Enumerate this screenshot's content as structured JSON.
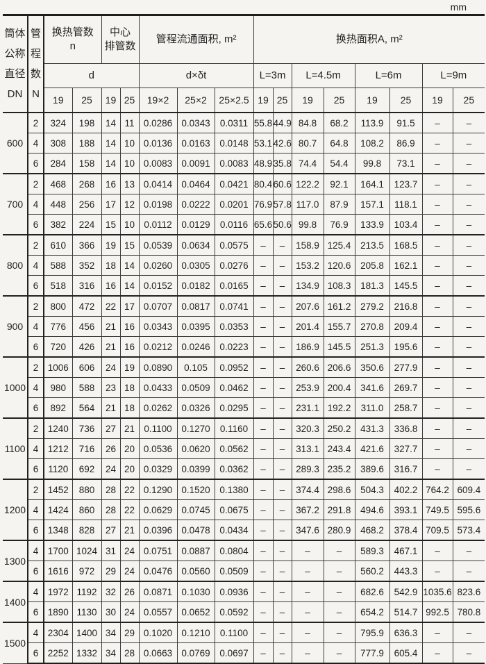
{
  "unit_label": "mm",
  "colors": {
    "paper": "#f5f4f0",
    "ink": "#222222",
    "grid_line": "#3b3b3b",
    "heavy_line": "#1d1d1d"
  },
  "header": {
    "dn": "筒体\n公称\n直径\nDN",
    "n": "管\n程\n数\nN",
    "tube_count": "换热管数\nn",
    "center_rows": "中心\n排管数",
    "flow_area": "管程流通面积, m²",
    "heat_area": "换热面积A, m²",
    "d_label": "d",
    "dxdt_label": "d×δt",
    "lengths": [
      "L=3m",
      "L=4.5m",
      "L=6m",
      "L=9m"
    ],
    "sub_cols": [
      "19",
      "25",
      "19",
      "25",
      "19×2",
      "25×2",
      "25×2.5",
      "19",
      "25",
      "19",
      "25",
      "19",
      "25",
      "19",
      "25"
    ]
  },
  "body": {
    "groups": [
      {
        "dn": "600",
        "rows": [
          {
            "n": "2",
            "cells": [
              "324",
              "198",
              "14",
              "11",
              "0.0286",
              "0.0343",
              "0.0311",
              "55.8",
              "44.9",
              "84.8",
              "68.2",
              "113.9",
              "91.5",
              "–",
              "–"
            ]
          },
          {
            "n": "4",
            "cells": [
              "308",
              "188",
              "14",
              "10",
              "0.0136",
              "0.0163",
              "0.0148",
              "53.1",
              "42.6",
              "80.7",
              "64.8",
              "108.2",
              "86.9",
              "–",
              "–"
            ]
          },
          {
            "n": "6",
            "cells": [
              "284",
              "158",
              "14",
              "10",
              "0.0083",
              "0.0091",
              "0.0083",
              "48.9",
              "35.8",
              "74.4",
              "54.4",
              "99.8",
              "73.1",
              "–",
              "–"
            ]
          }
        ]
      },
      {
        "dn": "700",
        "rows": [
          {
            "n": "2",
            "cells": [
              "468",
              "268",
              "16",
              "13",
              "0.0414",
              "0.0464",
              "0.0421",
              "80.4",
              "60.6",
              "122.2",
              "92.1",
              "164.1",
              "123.7",
              "–",
              "–"
            ]
          },
          {
            "n": "4",
            "cells": [
              "448",
              "256",
              "17",
              "12",
              "0.0198",
              "0.0222",
              "0.0201",
              "76.9",
              "57.8",
              "117.0",
              "87.9",
              "157.1",
              "118.1",
              "–",
              "–"
            ]
          },
          {
            "n": "6",
            "cells": [
              "382",
              "224",
              "15",
              "10",
              "0.0112",
              "0.0129",
              "0.0116",
              "65.6",
              "50.6",
              "99.8",
              "76.9",
              "133.9",
              "103.4",
              "–",
              "–"
            ]
          }
        ]
      },
      {
        "dn": "800",
        "rows": [
          {
            "n": "2",
            "cells": [
              "610",
              "366",
              "19",
              "15",
              "0.0539",
              "0.0634",
              "0.0575",
              "–",
              "–",
              "158.9",
              "125.4",
              "213.5",
              "168.5",
              "–",
              "–"
            ]
          },
          {
            "n": "4",
            "cells": [
              "588",
              "352",
              "18",
              "14",
              "0.0260",
              "0.0305",
              "0.0276",
              "–",
              "–",
              "153.2",
              "120.6",
              "205.8",
              "162.1",
              "–",
              "–"
            ]
          },
          {
            "n": "6",
            "cells": [
              "518",
              "316",
              "16",
              "14",
              "0.0152",
              "0.0182",
              "0.0165",
              "–",
              "–",
              "134.9",
              "108.3",
              "181.3",
              "145.5",
              "–",
              "–"
            ]
          }
        ]
      },
      {
        "dn": "900",
        "rows": [
          {
            "n": "2",
            "cells": [
              "800",
              "472",
              "22",
              "17",
              "0.0707",
              "0.0817",
              "0.0741",
              "–",
              "–",
              "207.6",
              "161.2",
              "279.2",
              "216.8",
              "–",
              "–"
            ]
          },
          {
            "n": "4",
            "cells": [
              "776",
              "456",
              "21",
              "16",
              "0.0343",
              "0.0395",
              "0.0353",
              "–",
              "–",
              "201.4",
              "155.7",
              "270.8",
              "209.4",
              "–",
              "–"
            ]
          },
          {
            "n": "6",
            "cells": [
              "720",
              "426",
              "21",
              "16",
              "0.0212",
              "0.0246",
              "0.0223",
              "–",
              "–",
              "186.9",
              "145.5",
              "251.3",
              "195.6",
              "–",
              "–"
            ]
          }
        ]
      },
      {
        "dn": "1000",
        "rows": [
          {
            "n": "2",
            "cells": [
              "1006",
              "606",
              "24",
              "19",
              "0.0890",
              "0.105",
              "0.0952",
              "–",
              "–",
              "260.6",
              "206.6",
              "350.6",
              "277.9",
              "–",
              "–"
            ]
          },
          {
            "n": "4",
            "cells": [
              "980",
              "588",
              "23",
              "18",
              "0.0433",
              "0.0509",
              "0.0462",
              "–",
              "–",
              "253.9",
              "200.4",
              "341.6",
              "269.7",
              "–",
              "–"
            ]
          },
          {
            "n": "6",
            "cells": [
              "892",
              "564",
              "21",
              "18",
              "0.0262",
              "0.0326",
              "0.0295",
              "–",
              "–",
              "231.1",
              "192.2",
              "311.0",
              "258.7",
              "–",
              "–"
            ]
          }
        ]
      },
      {
        "dn": "1100",
        "rows": [
          {
            "n": "2",
            "cells": [
              "1240",
              "736",
              "27",
              "21",
              "0.1100",
              "0.1270",
              "0.1160",
              "–",
              "–",
              "320.3",
              "250.2",
              "431.3",
              "336.8",
              "–",
              "–"
            ]
          },
          {
            "n": "4",
            "cells": [
              "1212",
              "716",
              "26",
              "20",
              "0.0536",
              "0.0620",
              "0.0562",
              "–",
              "–",
              "313.1",
              "243.4",
              "421.6",
              "327.7",
              "–",
              "–"
            ]
          },
          {
            "n": "6",
            "cells": [
              "1120",
              "692",
              "24",
              "20",
              "0.0329",
              "0.0399",
              "0.0362",
              "–",
              "–",
              "289.3",
              "235.2",
              "389.6",
              "316.7",
              "–",
              "–"
            ]
          }
        ]
      },
      {
        "dn": "1200",
        "rows": [
          {
            "n": "2",
            "cells": [
              "1452",
              "880",
              "28",
              "22",
              "0.1290",
              "0.1520",
              "0.1380",
              "–",
              "–",
              "374.4",
              "298.6",
              "504.3",
              "402.2",
              "764.2",
              "609.4"
            ]
          },
          {
            "n": "4",
            "cells": [
              "1424",
              "860",
              "28",
              "22",
              "0.0629",
              "0.0745",
              "0.0675",
              "–",
              "–",
              "367.2",
              "291.8",
              "494.6",
              "393.1",
              "749.5",
              "595.6"
            ]
          },
          {
            "n": "6",
            "cells": [
              "1348",
              "828",
              "27",
              "21",
              "0.0396",
              "0.0478",
              "0.0434",
              "–",
              "–",
              "347.6",
              "280.9",
              "468.2",
              "378.4",
              "709.5",
              "573.4"
            ]
          }
        ]
      },
      {
        "dn": "1300",
        "rows": [
          {
            "n": "4",
            "cells": [
              "1700",
              "1024",
              "31",
              "24",
              "0.0751",
              "0.0887",
              "0.0804",
              "–",
              "–",
              "–",
              "–",
              "589.3",
              "467.1",
              "–",
              "–"
            ]
          },
          {
            "n": "6",
            "cells": [
              "1616",
              "972",
              "29",
              "24",
              "0.0476",
              "0.0560",
              "0.0509",
              "–",
              "–",
              "–",
              "–",
              "560.2",
              "443.3",
              "–",
              "–"
            ]
          }
        ]
      },
      {
        "dn": "1400",
        "rows": [
          {
            "n": "4",
            "cells": [
              "1972",
              "1192",
              "32",
              "26",
              "0.0871",
              "0.1030",
              "0.0936",
              "–",
              "–",
              "–",
              "–",
              "682.6",
              "542.9",
              "1035.6",
              "823.6"
            ]
          },
          {
            "n": "6",
            "cells": [
              "1890",
              "1130",
              "30",
              "24",
              "0.0557",
              "0.0652",
              "0.0592",
              "–",
              "–",
              "–",
              "–",
              "654.2",
              "514.7",
              "992.5",
              "780.8"
            ]
          }
        ]
      },
      {
        "dn": "1500",
        "rows": [
          {
            "n": "4",
            "cells": [
              "2304",
              "1400",
              "34",
              "29",
              "0.1020",
              "0.1210",
              "0.1100",
              "–",
              "–",
              "–",
              "–",
              "795.9",
              "636.3",
              "–",
              "–"
            ]
          },
          {
            "n": "6",
            "cells": [
              "2252",
              "1332",
              "34",
              "28",
              "0.0663",
              "0.0769",
              "0.0697",
              "–",
              "–",
              "–",
              "–",
              "777.9",
              "605.4",
              "–",
              "–"
            ]
          }
        ]
      }
    ]
  }
}
